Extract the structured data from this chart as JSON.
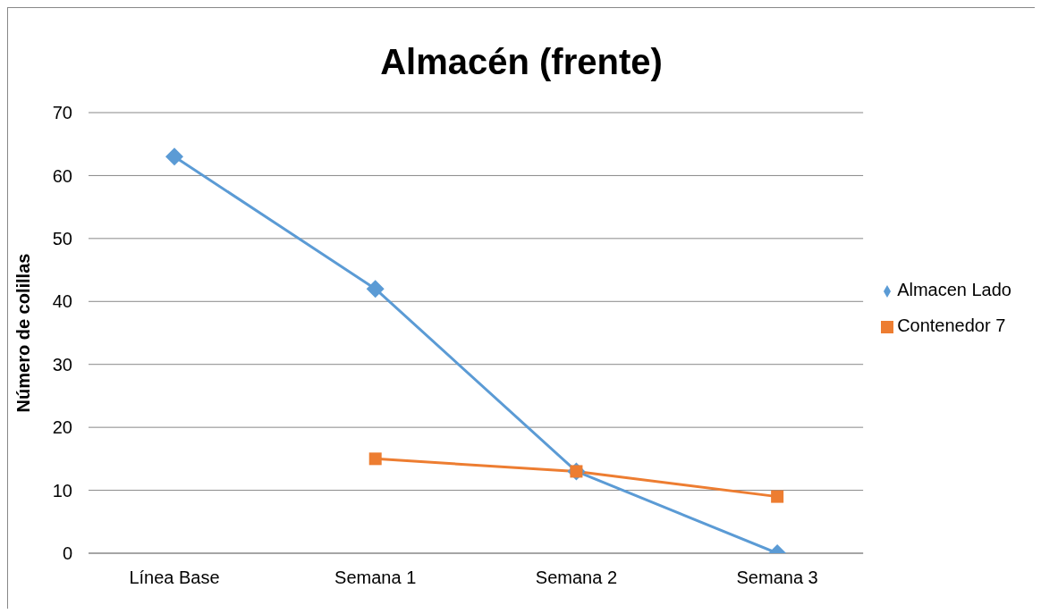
{
  "chart_data": {
    "type": "line",
    "title": "Almacén (frente)",
    "ylabel": "Número de colillas",
    "categories": [
      "Línea Base",
      "Semana 1",
      "Semana 2",
      "Semana 3"
    ],
    "series": [
      {
        "name": "Almacen Lado",
        "color": "#5b9bd5",
        "values": [
          63,
          42,
          13,
          0
        ],
        "marker": "diamond"
      },
      {
        "name": "Contenedor 7",
        "color": "#ed7d31",
        "values": [
          null,
          15,
          13,
          9
        ],
        "marker": "square"
      }
    ],
    "ylim": [
      0,
      70
    ],
    "yticks": [
      0,
      10,
      20,
      30,
      40,
      50,
      60,
      70
    ],
    "grid": "y",
    "legend": "right",
    "line_style": "solid"
  }
}
